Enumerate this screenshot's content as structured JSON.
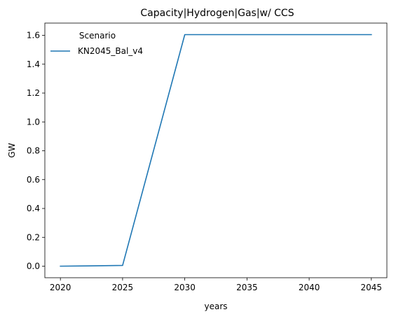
{
  "chart_data": {
    "type": "line",
    "title": "Capacity|Hydrogen|Gas|w/ CCS",
    "xlabel": "years",
    "ylabel": "GW",
    "x": [
      2020,
      2025,
      2030,
      2035,
      2040,
      2045
    ],
    "series": [
      {
        "name": "KN2045_Bal_v4",
        "color": "#1f77b4",
        "values": [
          0.0,
          0.005,
          1.605,
          1.605,
          1.605,
          1.605
        ]
      }
    ],
    "xlim": [
      2018.75,
      2046.25
    ],
    "ylim": [
      -0.08,
      1.685
    ],
    "xticks": [
      2020,
      2025,
      2030,
      2035,
      2040,
      2045
    ],
    "yticks": [
      0.0,
      0.2,
      0.4,
      0.6,
      0.8,
      1.0,
      1.2,
      1.4,
      1.6
    ],
    "ytick_labels": [
      "0.0",
      "0.2",
      "0.4",
      "0.6",
      "0.8",
      "1.0",
      "1.2",
      "1.4",
      "1.6"
    ],
    "grid": false,
    "legend": {
      "title": "Scenario",
      "placement": "top-left"
    }
  }
}
